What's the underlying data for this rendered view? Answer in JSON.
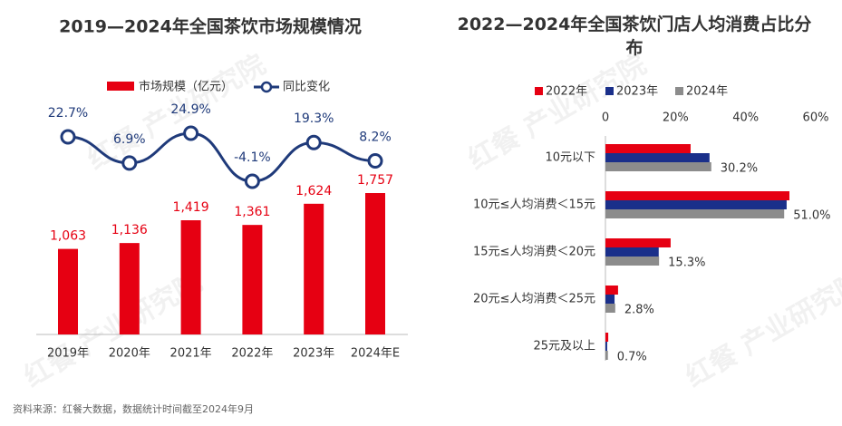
{
  "chart_data": [
    {
      "type": "combo",
      "title": "2019—2024年全国茶饮市场规模情况",
      "categories": [
        "2019年",
        "2020年",
        "2021年",
        "2022年",
        "2023年",
        "2024年E"
      ],
      "series": [
        {
          "name": "市场规模（亿元）",
          "type": "bar",
          "color": "#e60012",
          "values": [
            1063,
            1136,
            1419,
            1361,
            1624,
            1757
          ],
          "value_labels": [
            "1,063",
            "1,136",
            "1,419",
            "1,361",
            "1,624",
            "1,757"
          ]
        },
        {
          "name": "同比变化",
          "type": "line",
          "color": "#1f3a7a",
          "values": [
            22.7,
            6.9,
            24.9,
            -4.1,
            19.3,
            8.2
          ],
          "value_labels": [
            "22.7%",
            "6.9%",
            "24.9%",
            "-4.1%",
            "19.3%",
            "8.2%"
          ]
        }
      ]
    },
    {
      "type": "hbar",
      "title": "2022—2024年全国茶饮门店人均消费占比分布",
      "categories": [
        "10元以下",
        "10元≤人均消费＜15元",
        "15元≤人均消费＜20元",
        "20元≤人均消费＜25元",
        "25元及以上"
      ],
      "series": [
        {
          "name": "2022年",
          "color": "#e60012",
          "values": [
            24.3,
            52.5,
            18.6,
            3.6,
            0.8
          ]
        },
        {
          "name": "2023年",
          "color": "#1a2f8a",
          "values": [
            29.7,
            51.7,
            15.2,
            2.6,
            0.5
          ]
        },
        {
          "name": "2024年",
          "color": "#8c8c8c",
          "values": [
            30.2,
            51.0,
            15.3,
            2.8,
            0.7
          ],
          "value_labels": [
            "30.2%",
            "51.0%",
            "15.3%",
            "2.8%",
            "0.7%"
          ]
        }
      ],
      "xlim": [
        0,
        60
      ],
      "xticks": [
        {
          "value": 0,
          "label": "0"
        },
        {
          "value": 20,
          "label": "20%"
        },
        {
          "value": 40,
          "label": "40%"
        },
        {
          "value": 60,
          "label": "60%"
        }
      ]
    }
  ],
  "source": "资料来源：红餐大数据，数据统计时间截至2024年9月",
  "watermark": "红餐 产业研究院"
}
